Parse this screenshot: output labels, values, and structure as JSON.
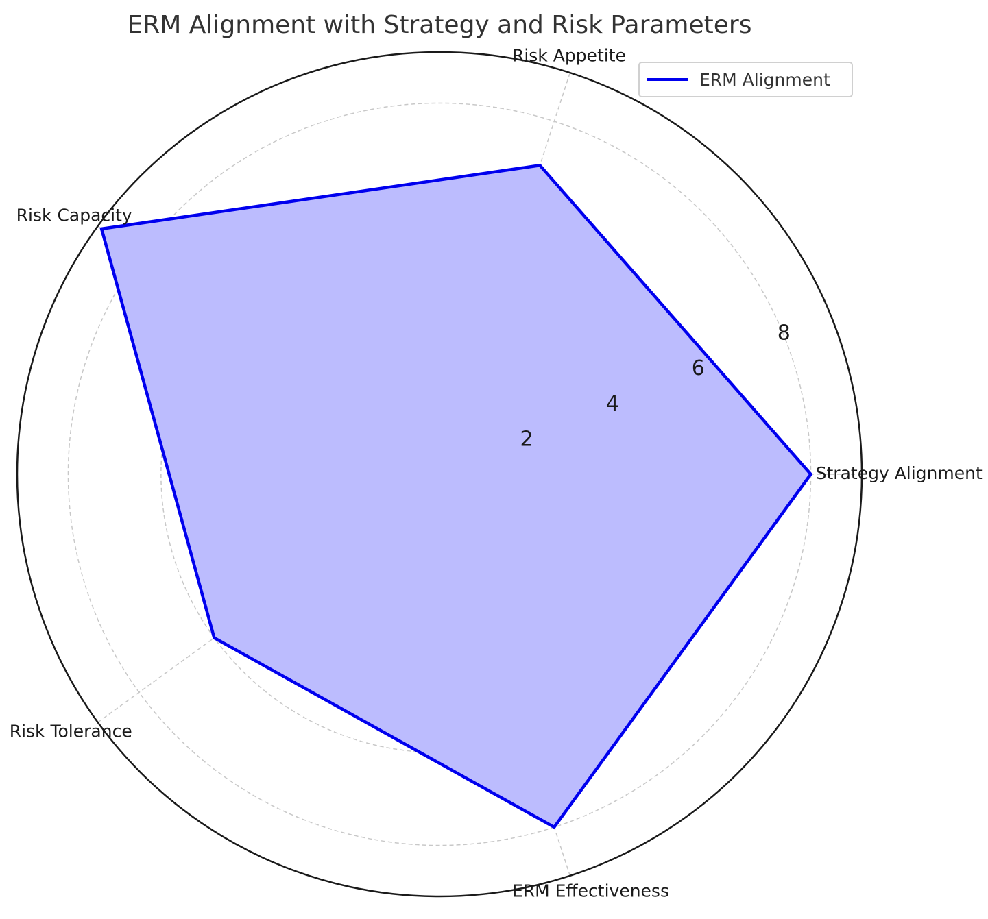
{
  "chart_data": {
    "type": "radar",
    "title": "ERM Alignment with Strategy and Risk Parameters",
    "categories": [
      "Strategy Alignment",
      "Risk Appetite",
      "Risk Capacity",
      "Risk Tolerance",
      "ERM Effectiveness"
    ],
    "series": [
      {
        "name": "ERM Alignment",
        "values": [
          8,
          7,
          9,
          6,
          8
        ]
      }
    ],
    "rlim": [
      0,
      9.1
    ],
    "rticks": [
      2,
      4,
      6,
      8
    ],
    "rtick_labels": [
      "2",
      "4",
      "6",
      "8"
    ],
    "grid": true,
    "legend_position": "top-right"
  },
  "colors": {
    "series_line": "#0000ee",
    "series_fill": "#bcbcfe",
    "grid": "#c8c8c8",
    "outer_ring": "#1a1a1a"
  }
}
